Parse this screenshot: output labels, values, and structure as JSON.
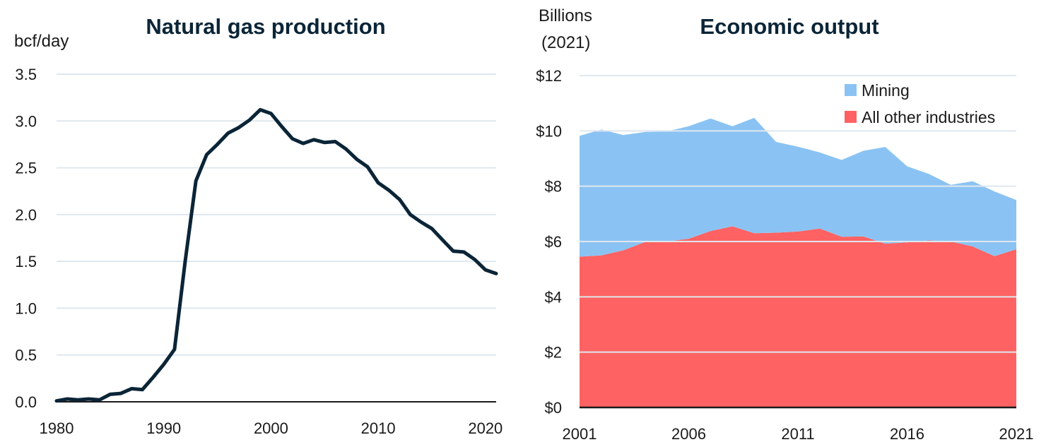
{
  "chart_data": [
    {
      "type": "line",
      "title": "Natural gas production",
      "ylabel": "bcf/day",
      "xlabel": "",
      "ylim": [
        0,
        3.5
      ],
      "xlim": [
        1980,
        2021
      ],
      "y_ticks": [
        "0.0",
        "0.5",
        "1.0",
        "1.5",
        "2.0",
        "2.5",
        "3.0",
        "3.5"
      ],
      "x_ticks": [
        "1980",
        "1990",
        "2000",
        "2010",
        "2020"
      ],
      "grid": true,
      "color": "#0b2537",
      "series": [
        {
          "x": [
            1980,
            1981,
            1982,
            1983,
            1984,
            1985,
            1986,
            1987,
            1988,
            1989,
            1990,
            1991,
            1992,
            1993,
            1994,
            1995,
            1996,
            1997,
            1998,
            1999,
            2000,
            2001,
            2002,
            2003,
            2004,
            2005,
            2006,
            2007,
            2008,
            2009,
            2010,
            2011,
            2012,
            2013,
            2014,
            2015,
            2016,
            2017,
            2018,
            2019,
            2020,
            2021
          ],
          "values": [
            0.01,
            0.03,
            0.02,
            0.03,
            0.02,
            0.08,
            0.09,
            0.14,
            0.13,
            0.26,
            0.4,
            0.56,
            1.5,
            2.36,
            2.64,
            2.75,
            2.87,
            2.93,
            3.01,
            3.12,
            3.08,
            2.94,
            2.81,
            2.76,
            2.8,
            2.77,
            2.78,
            2.7,
            2.59,
            2.51,
            2.34,
            2.26,
            2.16,
            2.0,
            1.92,
            1.85,
            1.73,
            1.61,
            1.6,
            1.52,
            1.41,
            1.37
          ]
        }
      ]
    },
    {
      "type": "area",
      "stacked": true,
      "title": "Economic output",
      "ylabel": "Billions (2021)",
      "ylabel_lines": [
        "Billions",
        "(2021)"
      ],
      "xlabel": "",
      "ylim": [
        0,
        12
      ],
      "xlim": [
        2001,
        2021
      ],
      "y_ticks": [
        "$0",
        "$2",
        "$4",
        "$6",
        "$8",
        "$10",
        "$12"
      ],
      "x_ticks": [
        "2001",
        "2006",
        "2011",
        "2016",
        "2021"
      ],
      "grid": true,
      "legend": "top-right",
      "x": [
        2001,
        2002,
        2003,
        2004,
        2005,
        2006,
        2007,
        2008,
        2009,
        2010,
        2011,
        2012,
        2013,
        2014,
        2015,
        2016,
        2017,
        2018,
        2019,
        2020,
        2021
      ],
      "series": [
        {
          "name": "All other industries",
          "color": "#ff6262",
          "values": [
            5.45,
            5.5,
            5.68,
            5.98,
            6.0,
            6.1,
            6.38,
            6.55,
            6.3,
            6.32,
            6.36,
            6.47,
            6.17,
            6.18,
            5.92,
            5.97,
            6.04,
            6.0,
            5.82,
            5.47,
            5.72
          ]
        },
        {
          "name": "Mining",
          "color": "#8ac3f3",
          "values": [
            4.37,
            4.55,
            4.17,
            3.98,
            3.98,
            4.07,
            4.07,
            3.62,
            4.17,
            3.28,
            3.07,
            2.75,
            2.78,
            3.1,
            3.5,
            2.75,
            2.4,
            2.05,
            2.36,
            2.34,
            1.78
          ]
        }
      ]
    }
  ]
}
